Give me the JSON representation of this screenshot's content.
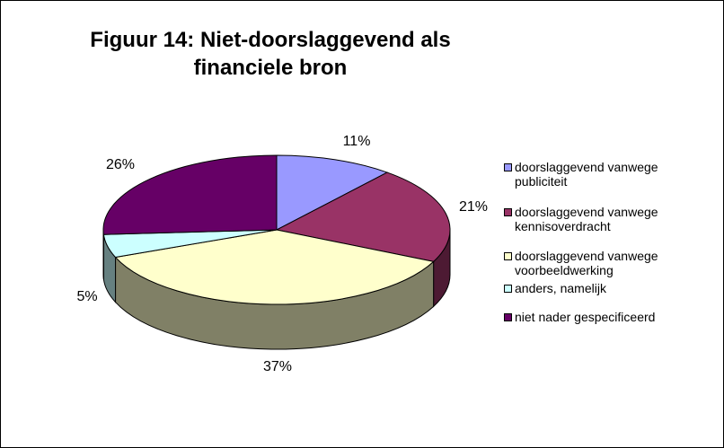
{
  "chart_data": {
    "type": "pie3d",
    "title": "Figuur 14: Niet-doorslaggevend als financiele bron",
    "categories": [
      "doorslaggevend vanwege publiciteit",
      "doorslaggevend vanwege kennisoverdracht",
      "doorslaggevend vanwege voorbeeldwerking",
      "anders, namelijk",
      "niet nader gespecificeerd"
    ],
    "values": [
      11,
      21,
      37,
      5,
      26
    ],
    "value_labels": [
      "11%",
      "21%",
      "37%",
      "5%",
      "26%"
    ],
    "colors": [
      "#9999ff",
      "#993366",
      "#ffffcc",
      "#ccffff",
      "#660066"
    ],
    "legend": "right"
  }
}
